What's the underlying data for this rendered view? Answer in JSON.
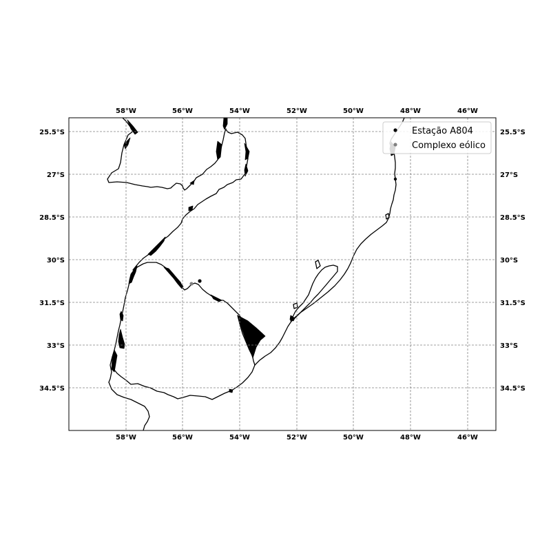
{
  "map": {
    "lon_ticks": [
      "58°W",
      "56°W",
      "54°W",
      "52°W",
      "50°W",
      "48°W",
      "46°W"
    ],
    "lat_ticks": [
      "25.5°S",
      "27°S",
      "28.5°S",
      "30°S",
      "31.5°S",
      "33°S",
      "34.5°S"
    ],
    "lon_range": [
      -60,
      -45
    ],
    "lat_range": [
      -36,
      -25
    ]
  },
  "legend": {
    "position": "top-right",
    "items": [
      {
        "label": "Estação A804",
        "color": "#000000",
        "marker": "dot"
      },
      {
        "label": "Complexo eólico",
        "color": "#808080",
        "marker": "dot"
      }
    ]
  },
  "points": [
    {
      "name": "Estação A804",
      "lon": -55.4,
      "lat": -30.75,
      "color": "#000000"
    },
    {
      "name": "Complexo eólico",
      "lon": -55.7,
      "lat": -30.85,
      "color": "#808080"
    }
  ],
  "colors": {
    "gridlines": "#808080",
    "coastline": "#000000",
    "frame": "#000000"
  },
  "grid": true
}
